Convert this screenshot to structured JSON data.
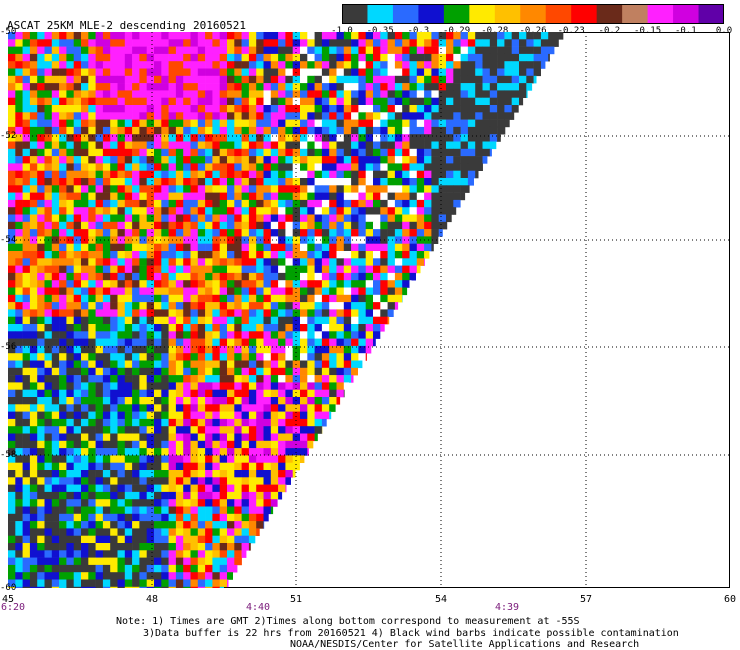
{
  "header": {
    "title": "ASCAT 25KM MLE-2 descending",
    "date": "20160521"
  },
  "colorbar": {
    "colors": [
      "#3a3a3a",
      "#00d8ff",
      "#2a6aff",
      "#1010d0",
      "#00a000",
      "#ffea00",
      "#ffc000",
      "#ff8800",
      "#ff4800",
      "#ff0000",
      "#6a2a1a",
      "#c08060",
      "#ff20ff",
      "#d000e0",
      "#6000a8"
    ],
    "tick_labels": [
      "-1.0",
      "-0.35",
      "-0.3",
      "-0.29",
      "-0.28",
      "-0.26",
      "-0.23",
      "-0.2",
      "-0.15",
      "-0.1",
      "0.0"
    ]
  },
  "axes": {
    "x_ticks": [
      "45",
      "48",
      "51",
      "54",
      "57",
      "60"
    ],
    "y_ticks": [
      "-50",
      "-52",
      "-54",
      "-56",
      "-58",
      "-60"
    ],
    "time_labels": [
      "6:20",
      "4:40",
      "4:39"
    ]
  },
  "notes": {
    "line1": "Note: 1) Times are GMT 2)Times along bottom correspond to measurement at -55S",
    "line2": "3)Data buffer is 22 hrs from 20160521 4) Black wind barbs indicate possible contamination",
    "line3": "NOAA/NESDIS/Center for Satellite Applications and Research"
  }
}
